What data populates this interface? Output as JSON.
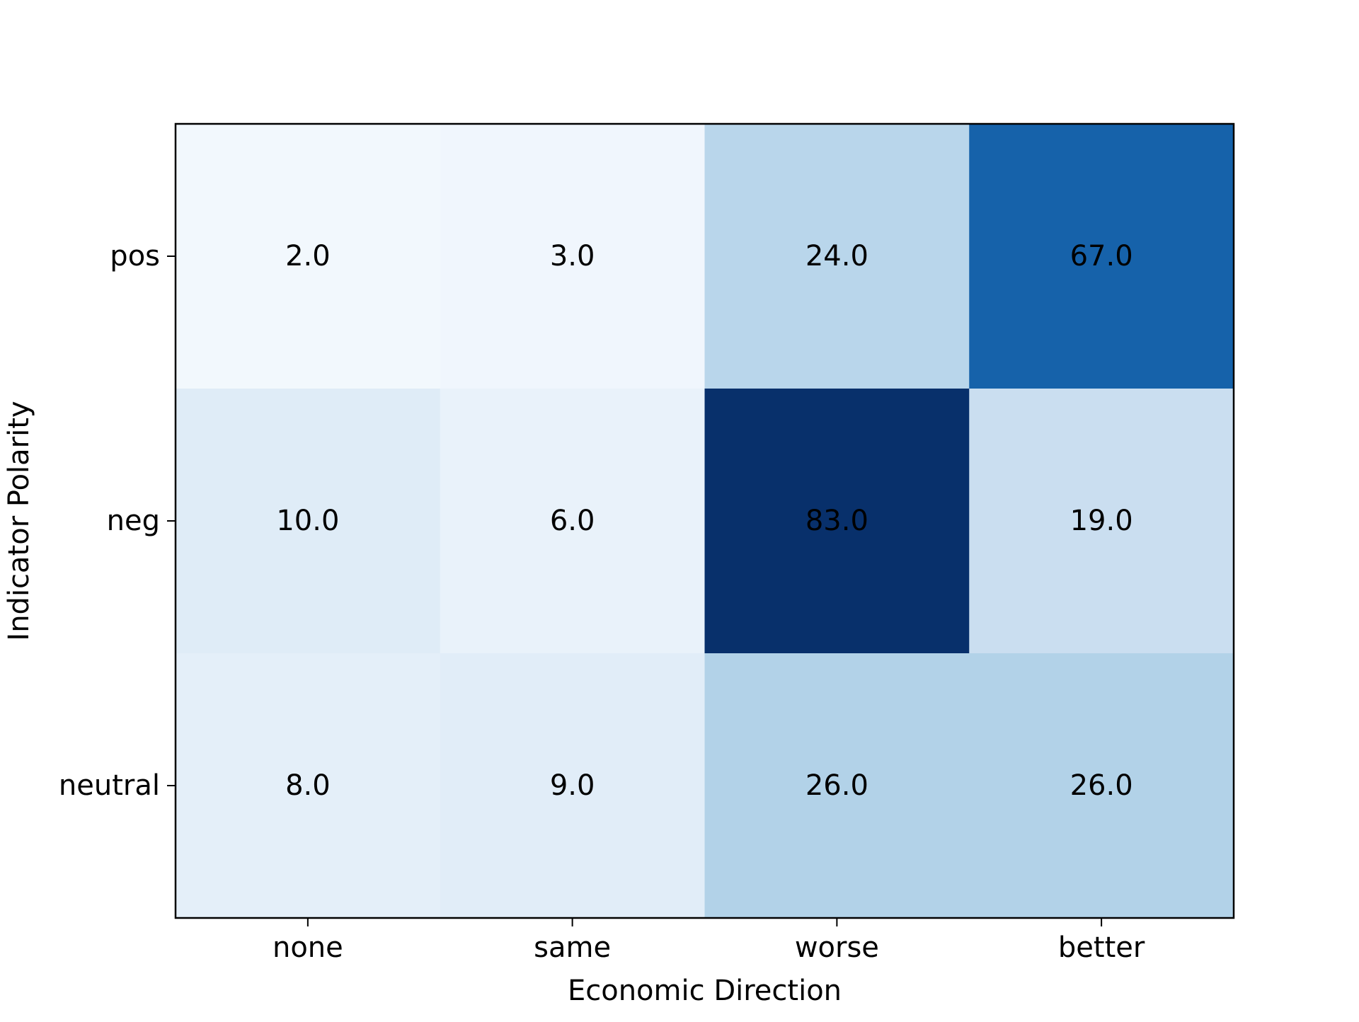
{
  "chart_data": {
    "type": "heatmap",
    "title": "",
    "xlabel": "Economic Direction",
    "ylabel": "Indicator Polarity",
    "x_categories": [
      "none",
      "same",
      "worse",
      "better"
    ],
    "y_categories": [
      "pos",
      "neg",
      "neutral"
    ],
    "values": [
      [
        2.0,
        3.0,
        24.0,
        67.0
      ],
      [
        10.0,
        6.0,
        83.0,
        19.0
      ],
      [
        8.0,
        9.0,
        26.0,
        26.0
      ]
    ],
    "cell_labels": [
      [
        "2.0",
        "3.0",
        "24.0",
        "67.0"
      ],
      [
        "10.0",
        "6.0",
        "83.0",
        "19.0"
      ],
      [
        "8.0",
        "9.0",
        "26.0",
        "26.0"
      ]
    ],
    "colormap": "Blues",
    "value_range": [
      0,
      83
    ],
    "grid": false,
    "colorbar": false
  }
}
